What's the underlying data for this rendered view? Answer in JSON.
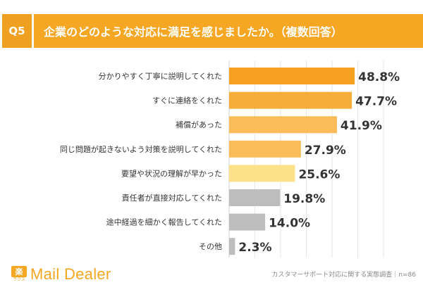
{
  "header": {
    "question_no": "Q5",
    "question_text": "企業のどのような対応に満足を感じましたか。（複数回答）"
  },
  "colors": {
    "accent": "#f5a623",
    "bar_dark": "#f5a020",
    "bar_mid": "#f8b54a",
    "bar_light": "#fbc56c",
    "bar_yellow": "#fde08a",
    "bar_gray": "#bdbdbd"
  },
  "chart_data": {
    "type": "bar",
    "orientation": "horizontal",
    "categories": [
      "分かりやすく丁寧に説明してくれた",
      "すぐに連絡をくれた",
      "補償があった",
      "同じ問題が起きないよう対策を説明してくれた",
      "要望や状況の理解が早かった",
      "責任者が直接対応してくれた",
      "途中経過を細かく報告してくれた",
      "その他"
    ],
    "values": [
      48.8,
      47.7,
      41.9,
      27.9,
      25.6,
      19.8,
      14.0,
      2.3
    ],
    "value_labels": [
      "48.8%",
      "47.7%",
      "41.9%",
      "27.9%",
      "25.6%",
      "19.8%",
      "14.0%",
      "2.3%"
    ],
    "bar_colors": [
      "#f5a020",
      "#f7ad3a",
      "#f9bc58",
      "#f9bc58",
      "#fde08a",
      "#bdbdbd",
      "#bdbdbd",
      "#bdbdbd"
    ],
    "xlim": [
      0,
      60
    ],
    "grid": true
  },
  "footer": {
    "logo_mark": "楽",
    "logo_sub": "ラクス",
    "logo_text": "Mail Dealer",
    "note": "カスタマーサポート対応に関する実態調査｜n=86"
  }
}
